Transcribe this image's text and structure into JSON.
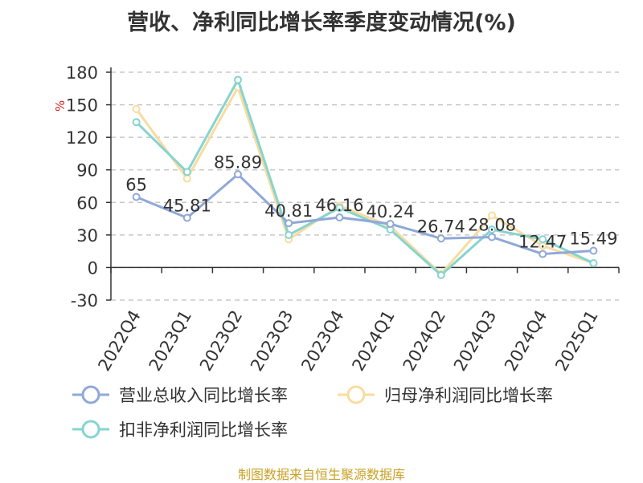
{
  "title": "营收、净利同比增长率季度变动情况(%)",
  "source": "制图数据来自恒生聚源数据库",
  "chart_data": {
    "type": "line",
    "title": "营收、净利同比增长率季度变动情况(%)",
    "ylabel": "%",
    "xlabel": "",
    "categories": [
      "2022Q4",
      "2023Q1",
      "2023Q2",
      "2023Q3",
      "2023Q4",
      "2024Q1",
      "2024Q2",
      "2024Q3",
      "2024Q4",
      "2025Q1"
    ],
    "ylim": [
      -30,
      180
    ],
    "yticks": [
      -30,
      0,
      30,
      60,
      90,
      120,
      150,
      180
    ],
    "grid": true,
    "legend_position": "bottom",
    "series": [
      {
        "name": "营业总收入同比增长率",
        "color": "#8fa8d8",
        "values": [
          65,
          45.81,
          85.89,
          40.81,
          46.16,
          40.24,
          26.74,
          28.08,
          12.47,
          15.49
        ],
        "labels": [
          "65",
          "45.81",
          "85.89",
          "40.81",
          "46.16",
          "40.24",
          "26.74",
          "28.08",
          "12.47",
          "15.49"
        ]
      },
      {
        "name": "归母净利润同比增长率",
        "color": "#f8dca0",
        "values": [
          146,
          82,
          166,
          26,
          57,
          38,
          -6,
          48,
          20,
          4
        ]
      },
      {
        "name": "扣非净利润同比增长率",
        "color": "#86d4d0",
        "values": [
          134,
          88,
          173,
          30,
          55,
          35,
          -7,
          35,
          26,
          4
        ]
      }
    ]
  }
}
